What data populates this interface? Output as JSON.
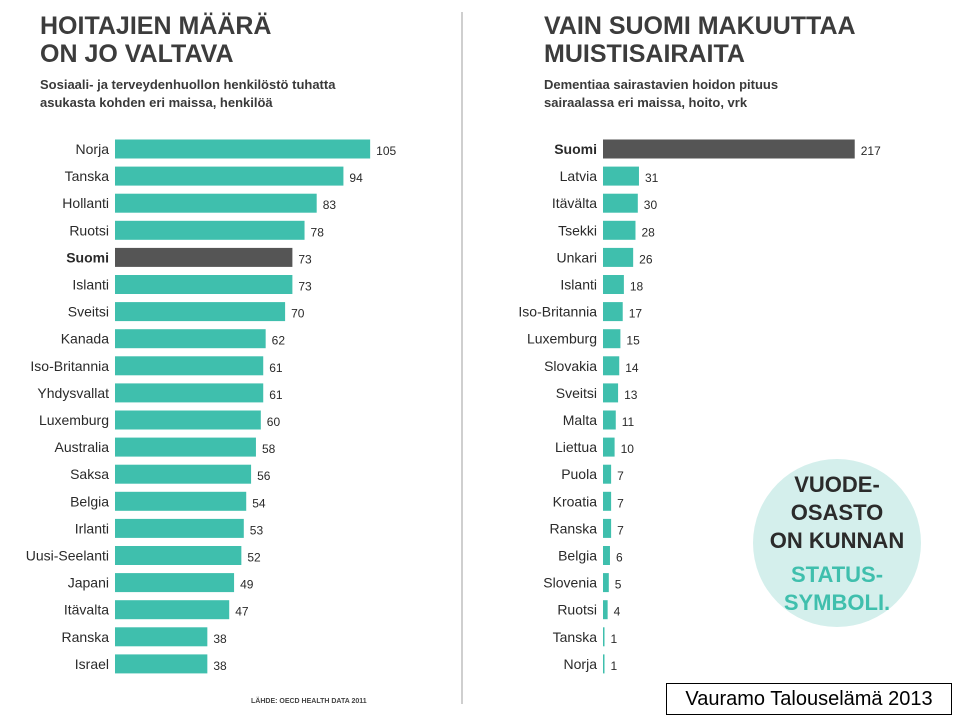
{
  "left": {
    "title_lines": [
      "HOITAJIEN MÄÄRÄ",
      "ON JO VALTAVA"
    ],
    "subtitle_lines": [
      "Sosiaali- ja terveydenhuollon henkilöstö tuhatta",
      "asukasta kohden eri maissa, henkilöä"
    ],
    "source": "LÄHDE: OECD HEALTH DATA 2011"
  },
  "right": {
    "title_lines": [
      "VAIN SUOMI MAKUUTTAA",
      "MUISTISAIRAITA"
    ],
    "subtitle_lines": [
      "Dementiaa sairastavien hoidon pituus",
      "sairaalassa eri maissa, hoito, vrk"
    ]
  },
  "badge": {
    "lines_dark": [
      "VUODE-",
      "OSASTO",
      "ON KUNNAN"
    ],
    "lines_accent": [
      "STATUS-",
      "SYMBOLI."
    ]
  },
  "credit": "Vauramo  Talouselämä 2013",
  "colors": {
    "bar": "#3fbfad",
    "highlight": "#555555",
    "divider": "#bfbfbf",
    "badge_bg": "#d4efec",
    "accent_text": "#3fbfad"
  },
  "chart_data": [
    {
      "type": "bar",
      "orientation": "horizontal",
      "title": "HOITAJIEN MÄÄRÄ ON JO VALTAVA",
      "subtitle": "Sosiaali- ja terveydenhuollon henkilöstö tuhatta asukasta kohden eri maissa, henkilöä",
      "highlight": "Suomi",
      "categories": [
        "Norja",
        "Tanska",
        "Hollanti",
        "Ruotsi",
        "Suomi",
        "Islanti",
        "Sveitsi",
        "Kanada",
        "Iso-Britannia",
        "Yhdysvallat",
        "Luxemburg",
        "Australia",
        "Saksa",
        "Belgia",
        "Irlanti",
        "Uusi-Seelanti",
        "Japani",
        "Itävalta",
        "Ranska",
        "Israel"
      ],
      "values": [
        105,
        94,
        83,
        78,
        73,
        73,
        70,
        62,
        61,
        61,
        60,
        58,
        56,
        54,
        53,
        52,
        49,
        47,
        38,
        38
      ]
    },
    {
      "type": "bar",
      "orientation": "horizontal",
      "title": "VAIN SUOMI MAKUUTTAA MUISTISAIRAITA",
      "subtitle": "Dementiaa sairastavien hoidon pituus sairaalassa eri maissa, hoito, vrk",
      "highlight": "Suomi",
      "categories": [
        "Suomi",
        "Latvia",
        "Itävälta",
        "Tsekki",
        "Unkari",
        "Islanti",
        "Iso-Britannia",
        "Luxemburg",
        "Slovakia",
        "Sveitsi",
        "Malta",
        "Liettua",
        "Puola",
        "Kroatia",
        "Ranska",
        "Belgia",
        "Slovenia",
        "Ruotsi",
        "Tanska",
        "Norja"
      ],
      "values": [
        217,
        31,
        30,
        28,
        26,
        18,
        17,
        15,
        14,
        13,
        11,
        10,
        7,
        7,
        7,
        6,
        5,
        4,
        1,
        1
      ]
    }
  ]
}
